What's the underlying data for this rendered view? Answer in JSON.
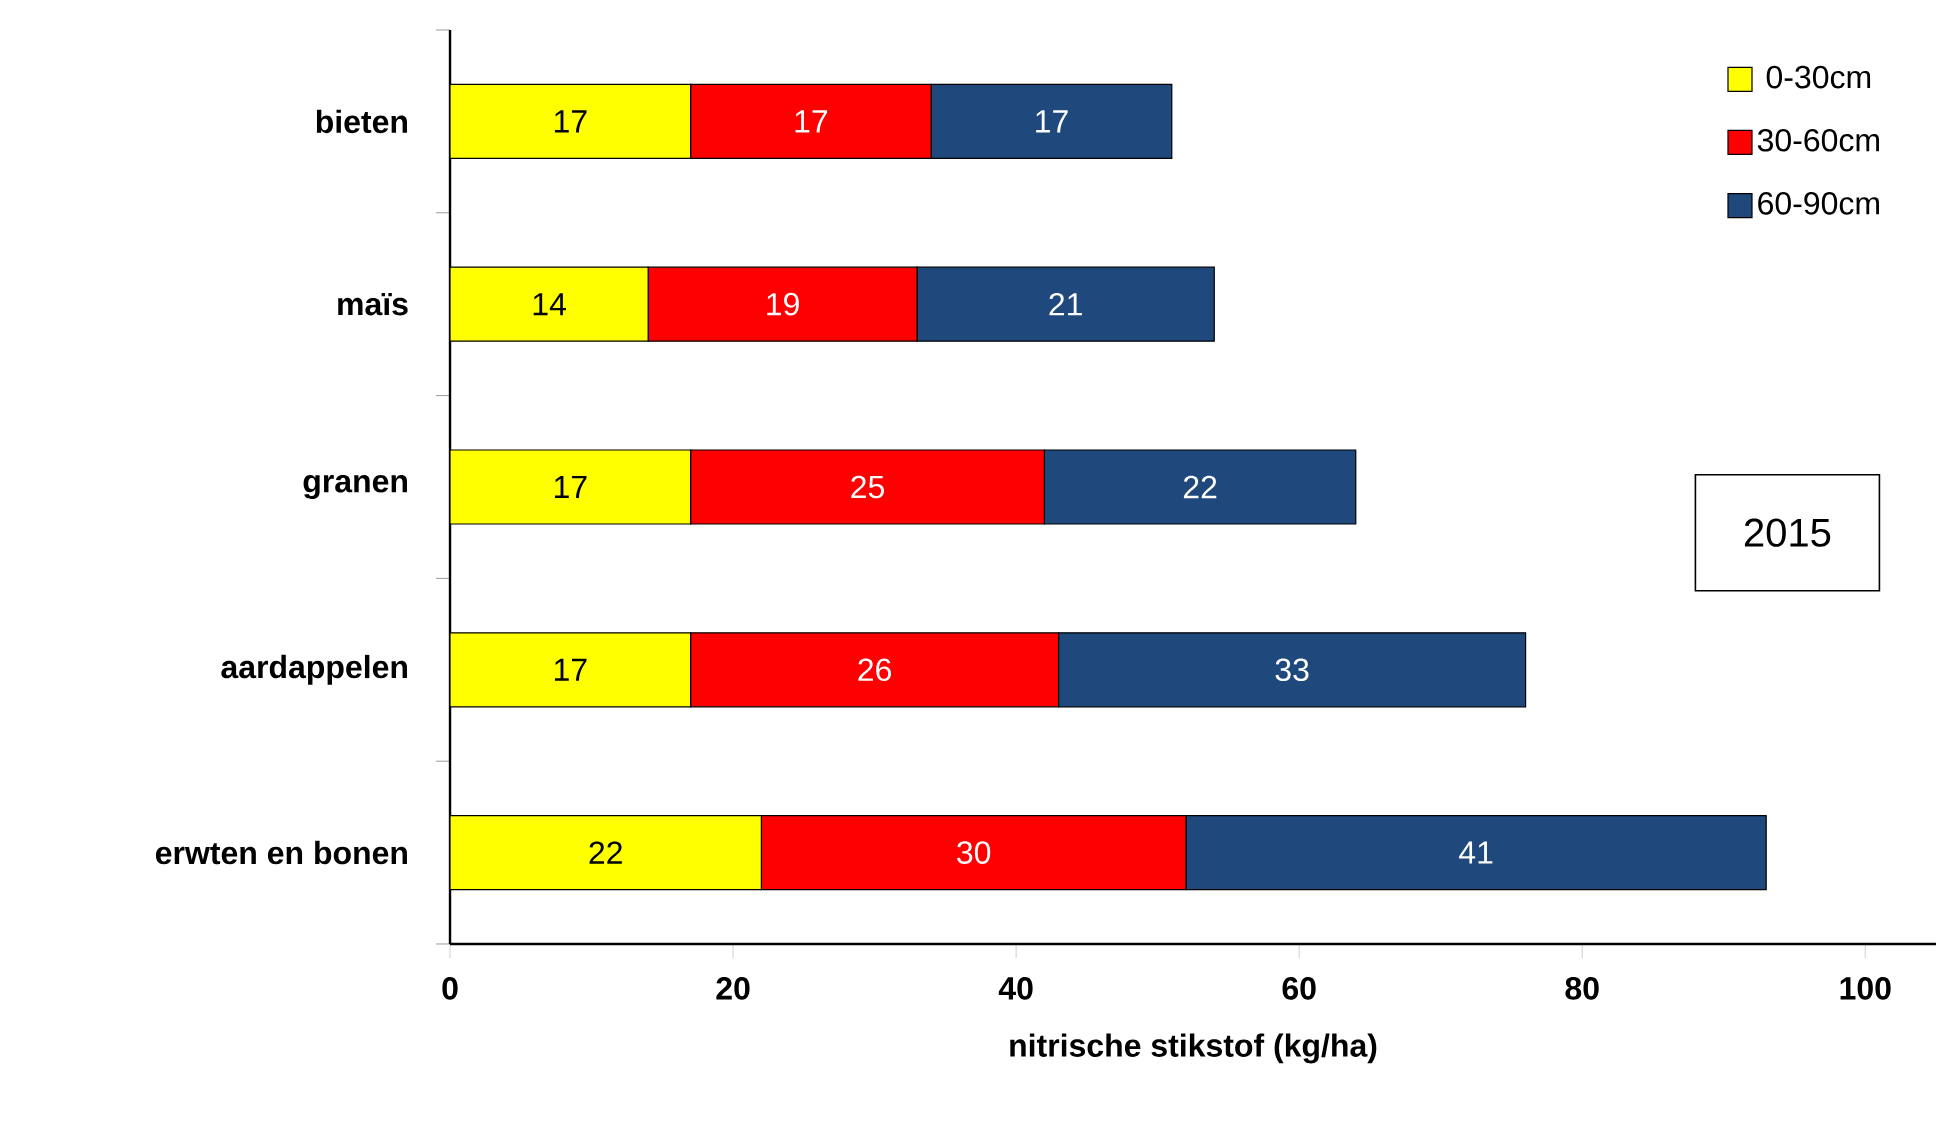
{
  "chart_data": {
    "type": "bar",
    "orientation": "horizontal",
    "stacked": true,
    "categories": [
      "bieten",
      "maïs",
      "granen",
      "aardappelen",
      "erwten en bonen"
    ],
    "series": [
      {
        "name": "0-30cm",
        "color": "#ffff00",
        "values": [
          17,
          14,
          17,
          17,
          22
        ]
      },
      {
        "name": "30-60cm",
        "color": "#ff0000",
        "values": [
          17,
          19,
          25,
          26,
          30
        ]
      },
      {
        "name": "60-90cm",
        "color": "#1f497d",
        "values": [
          17,
          21,
          22,
          33,
          41
        ]
      }
    ],
    "xlabel": "nitrische stikstof (kg/ha)",
    "xlim": [
      0,
      105
    ],
    "xticks": [
      0,
      20,
      40,
      60,
      80,
      100
    ],
    "data_labels": true,
    "legend": "top right",
    "grid": false,
    "annotations": [
      "2015"
    ]
  }
}
